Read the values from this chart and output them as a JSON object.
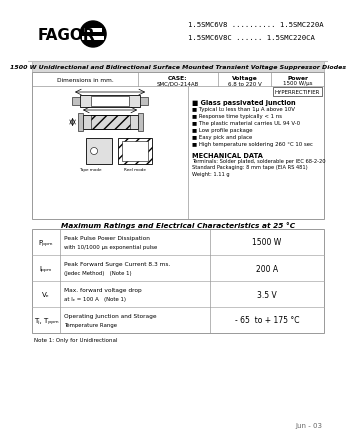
{
  "title_part_numbers_line1": "1.5SMC6V8 .......... 1.5SMC220A",
  "title_part_numbers_line2": "1.5SMC6V8C ...... 1.5SMC220CA",
  "main_title": "1500 W Unidirectional and Bidirectional Surface Mounted Transient Voltage Suppressor Diodes",
  "brand": "FAGOR",
  "case_label": "CASE:",
  "case_value": "SMC/DO-214AB",
  "voltage_label": "Voltage",
  "voltage_value": "6.8 to 220 V",
  "power_label": "Power",
  "power_value": "1500 W/μs",
  "features_title": "Glass passivated junction",
  "features": [
    "Typical I₂₂ less than 1μ A above 10V",
    "Response time typically < 1 ns",
    "The plastic material carries UL 94 V-0",
    "Low profile package",
    "Easy pick and place",
    "High temperature soldering 260 °C 10 sec"
  ],
  "mech_title": "MECHANICAL DATA",
  "mech_data": [
    "Terminals: Solder plated, solderable per IEC 68-2-20",
    "Standard Packaging: 8 mm tape (EIA RS 481)",
    "Weight: 1.11 g"
  ],
  "table_title": "Maximum Ratings and Electrical Characteristics at 25 °C",
  "table_rows": [
    {
      "symbol": "Pₚₚₘ",
      "description": "Peak Pulse Power Dissipation\nwith 10/1000 μs exponential pulse",
      "note": "",
      "value": "1500 W"
    },
    {
      "symbol": "Iₚₚₘ",
      "description": "Peak Forward Surge Current 8.3 ms.\n(Jedec Method)",
      "note": "(Note 1)",
      "value": "200 A"
    },
    {
      "symbol": "Vₑ",
      "description": "Max. forward voltage drop\nat Iₑ = 100 A",
      "note": "(Note 1)",
      "value": "3.5 V"
    },
    {
      "symbol": "Tⱼ, Tₚₚₘ",
      "description": "Operating Junction and Storage\nTemperature Range",
      "note": "",
      "value": "- 65  to + 175 °C"
    }
  ],
  "note_text": "Note 1: Only for Unidirectional",
  "date_text": "Jun - 03",
  "bg_color": "#ffffff",
  "border_color": "#999999",
  "title_bar_bg": "#d8d8d8",
  "hyperrectifier_label": "HYPERRECTIFIER"
}
